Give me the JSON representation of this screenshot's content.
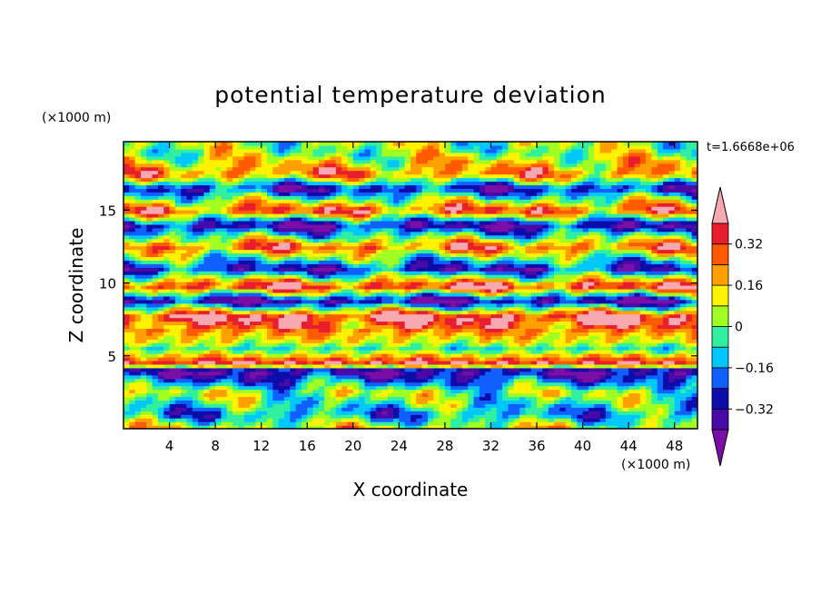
{
  "chart_data": {
    "type": "heatmap",
    "title": "potential temperature deviation",
    "time_label": "t=1.6668e+06",
    "xlabel": "X coordinate",
    "ylabel": "Z coordinate",
    "x_unit": "(×1000 m)",
    "y_unit": "(×1000 m)",
    "xlim": [
      0,
      50
    ],
    "ylim": [
      0,
      19.7
    ],
    "x_ticks": [
      4,
      8,
      12,
      16,
      20,
      24,
      28,
      32,
      36,
      40,
      44,
      48
    ],
    "y_ticks": [
      5,
      10,
      15
    ],
    "colorbar": {
      "levels": [
        -0.4,
        -0.32,
        -0.24,
        -0.16,
        -0.08,
        0,
        0.08,
        0.16,
        0.24,
        0.32,
        0.4
      ],
      "tick_labels": [
        "0.32",
        "0.16",
        "0",
        "−0.16",
        "−0.32"
      ],
      "colors": [
        "#7a0ea6",
        "#4b0aa8",
        "#0d0dab",
        "#1060ff",
        "#00c8ff",
        "#30f0a0",
        "#a0ff20",
        "#fff200",
        "#ffa000",
        "#ff5a00",
        "#e81e2e",
        "#f7a8b0"
      ]
    },
    "field_bands": [
      {
        "z": 19.0,
        "value": 0.02
      },
      {
        "z": 17.5,
        "value": 0.25
      },
      {
        "z": 16.5,
        "value": -0.3
      },
      {
        "z": 15.0,
        "value": 0.33
      },
      {
        "z": 14.0,
        "value": -0.36
      },
      {
        "z": 12.5,
        "value": 0.28
      },
      {
        "z": 11.0,
        "value": -0.3
      },
      {
        "z": 9.8,
        "value": 0.38
      },
      {
        "z": 8.8,
        "value": -0.38
      },
      {
        "z": 7.7,
        "value": 0.42
      },
      {
        "z": 6.6,
        "value": 0.2
      },
      {
        "z": 6.0,
        "value": 0.1
      },
      {
        "z": 5.5,
        "value": -0.05
      },
      {
        "z": 5.0,
        "value": 0.18
      },
      {
        "z": 4.5,
        "value": 0.4
      },
      {
        "z": 4.0,
        "value": -0.4
      },
      {
        "z": 2.5,
        "value": 0.05
      },
      {
        "z": 1.0,
        "value": -0.15
      },
      {
        "z": 0.0,
        "value": 0.1
      }
    ]
  }
}
